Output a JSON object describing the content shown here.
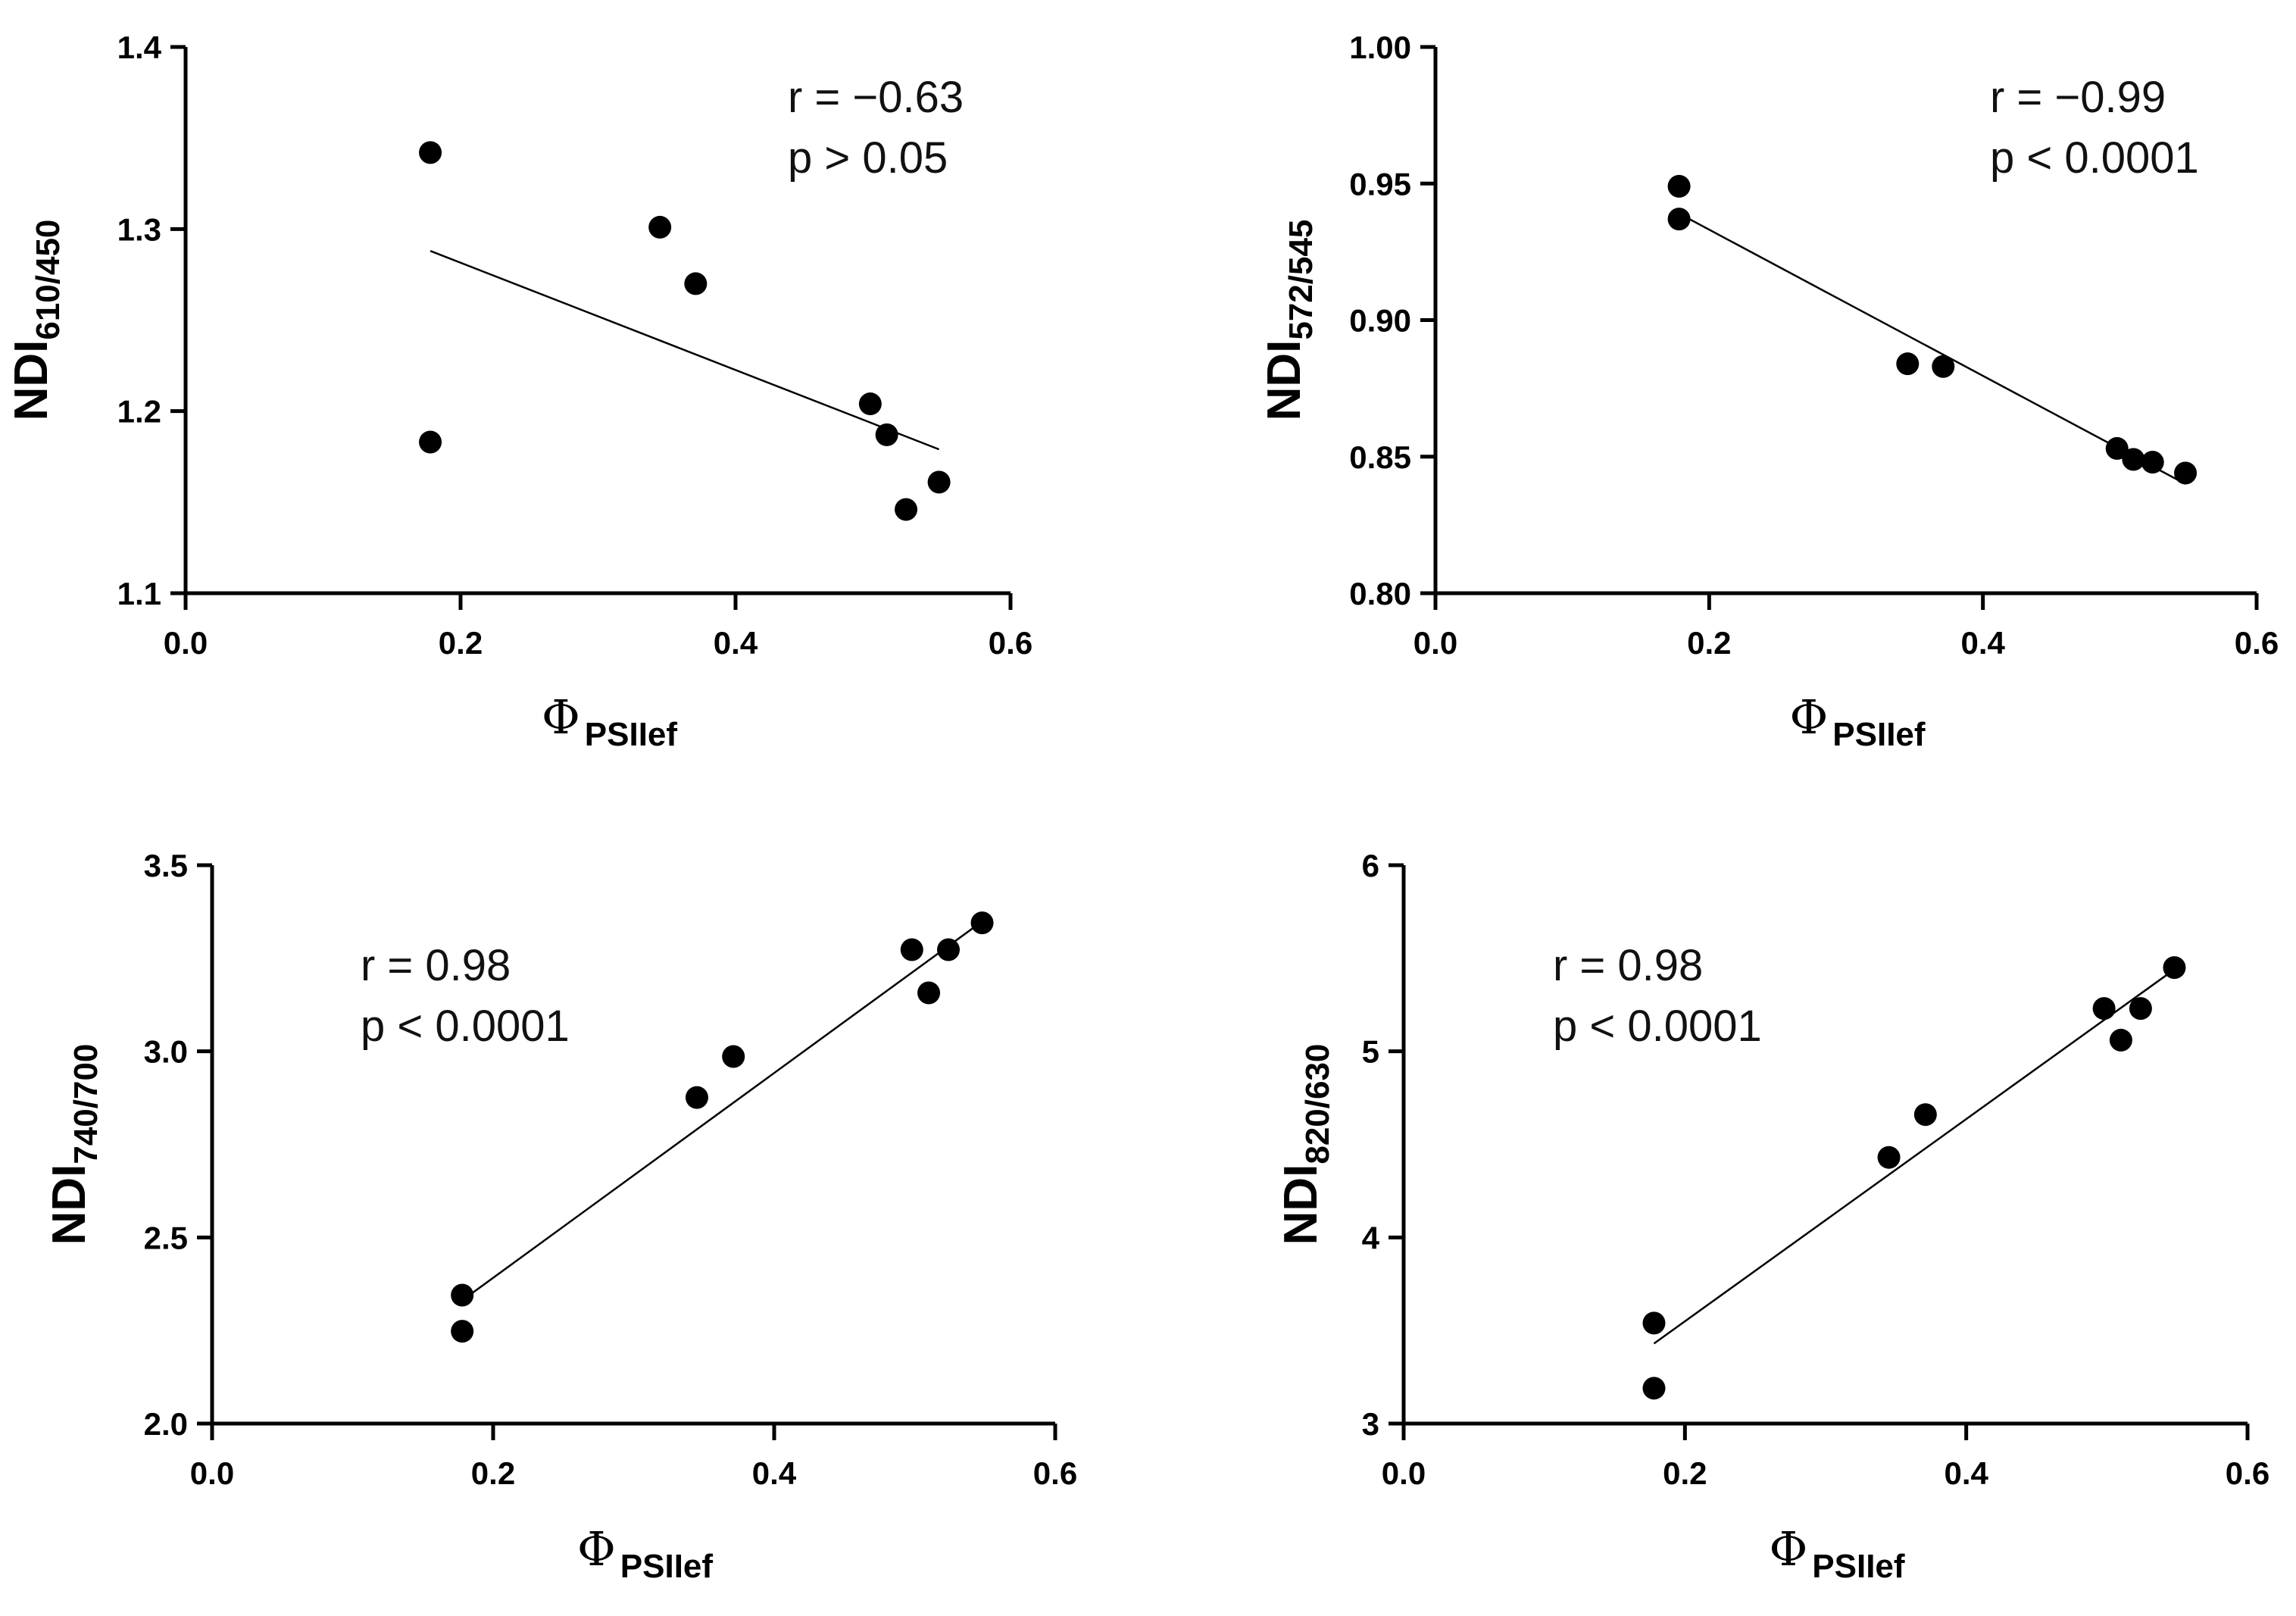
{
  "chart_data": [
    {
      "id": "A",
      "type": "scatter",
      "ylabel": "NDI",
      "ylabel_sub": "610/450",
      "xlabel": "Φ",
      "xlabel_sub": "PSIIef",
      "xlim": [
        0.0,
        0.6
      ],
      "ylim": [
        1.1,
        1.4
      ],
      "xticks": [
        "0.0",
        "0.2",
        "0.4",
        "0.6"
      ],
      "yticks": [
        "1.1",
        "1.2",
        "1.3",
        "1.4"
      ],
      "points": [
        [
          0.178,
          1.342
        ],
        [
          0.178,
          1.183
        ],
        [
          0.345,
          1.301
        ],
        [
          0.371,
          1.27
        ],
        [
          0.498,
          1.204
        ],
        [
          0.51,
          1.187
        ],
        [
          0.524,
          1.146
        ],
        [
          0.548,
          1.161
        ]
      ],
      "fit": [
        [
          0.178,
          1.288
        ],
        [
          0.548,
          1.179
        ]
      ],
      "annotation": [
        "r = −0.63",
        "p > 0.05"
      ],
      "annotation_anchor": "top-right"
    },
    {
      "id": "B",
      "type": "scatter",
      "ylabel": "NDI",
      "ylabel_sub": "572/545",
      "xlabel": "Φ",
      "xlabel_sub": "PSIIef",
      "xlim": [
        0.0,
        0.6
      ],
      "ylim": [
        0.8,
        1.0
      ],
      "xticks": [
        "0.0",
        "0.2",
        "0.4",
        "0.6"
      ],
      "yticks": [
        "0.80",
        "0.85",
        "0.90",
        "0.95",
        "1.00"
      ],
      "points": [
        [
          0.178,
          0.949
        ],
        [
          0.178,
          0.937
        ],
        [
          0.345,
          0.884
        ],
        [
          0.371,
          0.883
        ],
        [
          0.498,
          0.853
        ],
        [
          0.51,
          0.849
        ],
        [
          0.524,
          0.848
        ],
        [
          0.548,
          0.844
        ]
      ],
      "fit": [
        [
          0.178,
          0.939
        ],
        [
          0.548,
          0.84
        ]
      ],
      "annotation": [
        "r = −0.99",
        "p < 0.0001"
      ],
      "annotation_anchor": "top-right"
    },
    {
      "id": "C",
      "type": "scatter",
      "ylabel": "NDI",
      "ylabel_sub": "740/700",
      "xlabel": "Φ",
      "xlabel_sub": "PSIIef",
      "xlim": [
        0.0,
        0.6
      ],
      "ylim": [
        2.0,
        3.5
      ],
      "xticks": [
        "0.0",
        "0.2",
        "0.4",
        "0.6"
      ],
      "yticks": [
        "2.0",
        "2.5",
        "3.0",
        "3.5"
      ],
      "points": [
        [
          0.178,
          2.345
        ],
        [
          0.178,
          2.248
        ],
        [
          0.345,
          2.876
        ],
        [
          0.371,
          2.986
        ],
        [
          0.498,
          3.273
        ],
        [
          0.51,
          3.157
        ],
        [
          0.524,
          3.273
        ],
        [
          0.548,
          3.345
        ]
      ],
      "fit": [
        [
          0.178,
          2.331
        ],
        [
          0.548,
          3.349
        ]
      ],
      "annotation": [
        "r = 0.98",
        "p < 0.0001"
      ],
      "annotation_anchor": "top-left"
    },
    {
      "id": "D",
      "type": "scatter",
      "ylabel": "NDI",
      "ylabel_sub": "820/630",
      "xlabel": "Φ",
      "xlabel_sub": "PSIIef",
      "xlim": [
        0.0,
        0.6
      ],
      "ylim": [
        3,
        6
      ],
      "xticks": [
        "0.0",
        "0.2",
        "0.4",
        "0.6"
      ],
      "yticks": [
        "3",
        "4",
        "5",
        "6"
      ],
      "points": [
        [
          0.178,
          3.54
        ],
        [
          0.178,
          3.19
        ],
        [
          0.345,
          4.43
        ],
        [
          0.371,
          4.66
        ],
        [
          0.498,
          5.23
        ],
        [
          0.51,
          5.06
        ],
        [
          0.524,
          5.23
        ],
        [
          0.548,
          5.45
        ]
      ],
      "fit": [
        [
          0.178,
          3.43
        ],
        [
          0.548,
          5.44
        ]
      ],
      "annotation": [
        "r = 0.98",
        "p < 0.0001"
      ],
      "annotation_anchor": "top-left"
    }
  ]
}
